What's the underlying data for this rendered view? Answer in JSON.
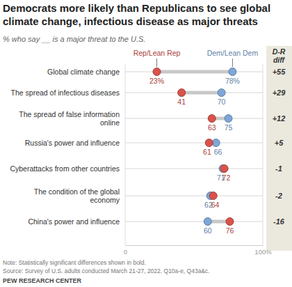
{
  "chart_data": {
    "type": "dot",
    "orientation": "horizontal",
    "title": "Democrats more likely than Republicans to see global climate change, infectious disease as major threats",
    "subtitle": "% who say __ is a major threat to the U.S.",
    "categories": [
      "Global climate change",
      "The spread of infectious diseases",
      "The spread of false information online",
      "Russia's power and influence",
      "Cyberattacks from other countries",
      "The condition of the global economy",
      "China's power and influence"
    ],
    "series": [
      {
        "name": "Dem/Lean Dem",
        "color": "#7ea6d8",
        "values": [
          78,
          70,
          75,
          66,
          71,
          62,
          60
        ],
        "value_labels": [
          "78%",
          "70",
          "75",
          "66",
          "71",
          "62",
          "60"
        ]
      },
      {
        "name": "Rep/Lean Rep",
        "color": "#d9534a",
        "values": [
          23,
          41,
          63,
          61,
          72,
          64,
          76
        ],
        "value_labels": [
          "23%",
          "41",
          "63",
          "61",
          "72",
          "64",
          "76"
        ]
      }
    ],
    "diff_title": "D-R diff",
    "diff": [
      55,
      29,
      12,
      5,
      -1,
      -2,
      -16
    ],
    "diff_labels": [
      "+55",
      "+29",
      "+12",
      "+5",
      "-1",
      "-2",
      "-16"
    ],
    "xlim": [
      0,
      100
    ],
    "xticks": [
      0,
      {
        "value": 100,
        "label": "100%"
      }
    ],
    "grid": true,
    "data_labels": true,
    "note": "Note: Statistically significant differences shown in bold.",
    "source": "Source: Survey of U.S. adults conducted March 21-27, 2022. Q10a-e, Q43a&c.",
    "credit": "PEW RESEARCH CENTER"
  }
}
